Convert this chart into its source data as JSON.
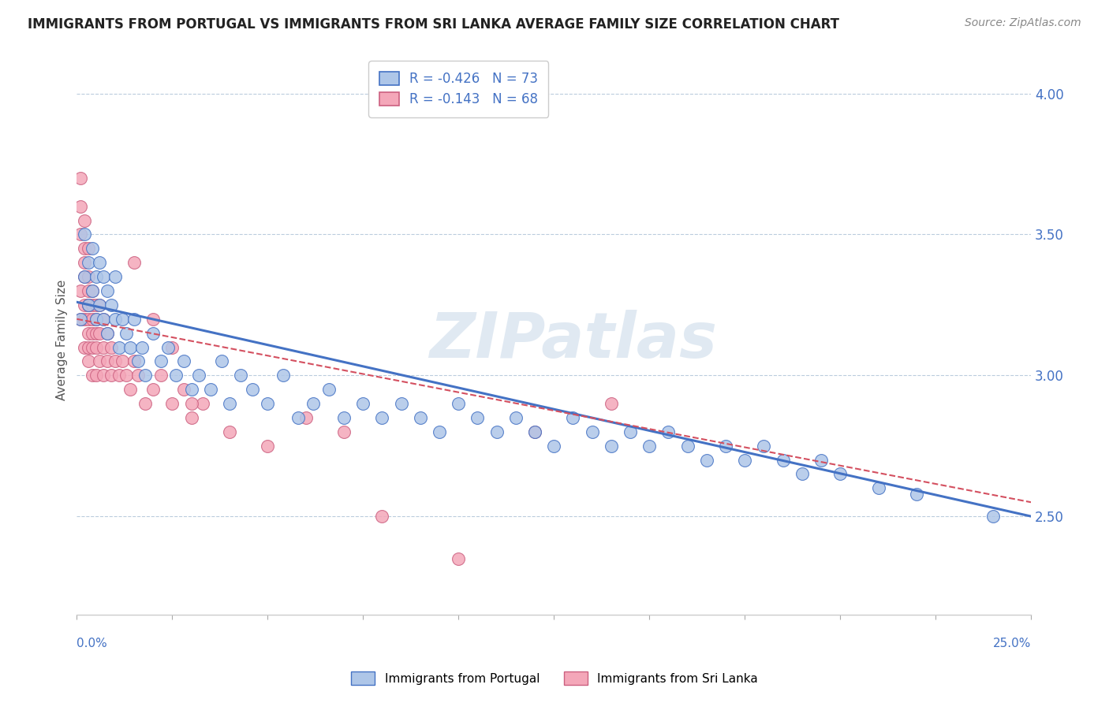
{
  "title": "IMMIGRANTS FROM PORTUGAL VS IMMIGRANTS FROM SRI LANKA AVERAGE FAMILY SIZE CORRELATION CHART",
  "source": "Source: ZipAtlas.com",
  "ylabel": "Average Family Size",
  "xmin": 0.0,
  "xmax": 0.25,
  "ymin": 2.15,
  "ymax": 4.1,
  "yticks": [
    2.5,
    3.0,
    3.5,
    4.0
  ],
  "portugal_R": -0.426,
  "portugal_N": 73,
  "srilanka_R": -0.143,
  "srilanka_N": 68,
  "portugal_color": "#aec6e8",
  "srilanka_color": "#f4a7b9",
  "trendline_portugal_color": "#4472c4",
  "trendline_srilanka_color": "#d45060",
  "background_color": "#ffffff",
  "portugal_scatter_x": [
    0.001,
    0.002,
    0.002,
    0.003,
    0.003,
    0.004,
    0.004,
    0.005,
    0.005,
    0.006,
    0.006,
    0.007,
    0.007,
    0.008,
    0.008,
    0.009,
    0.01,
    0.01,
    0.011,
    0.012,
    0.013,
    0.014,
    0.015,
    0.016,
    0.017,
    0.018,
    0.02,
    0.022,
    0.024,
    0.026,
    0.028,
    0.03,
    0.032,
    0.035,
    0.038,
    0.04,
    0.043,
    0.046,
    0.05,
    0.054,
    0.058,
    0.062,
    0.066,
    0.07,
    0.075,
    0.08,
    0.085,
    0.09,
    0.095,
    0.1,
    0.105,
    0.11,
    0.115,
    0.12,
    0.125,
    0.13,
    0.135,
    0.14,
    0.145,
    0.15,
    0.155,
    0.16,
    0.165,
    0.17,
    0.175,
    0.18,
    0.185,
    0.19,
    0.195,
    0.2,
    0.21,
    0.22,
    0.24
  ],
  "portugal_scatter_y": [
    3.2,
    3.35,
    3.5,
    3.25,
    3.4,
    3.3,
    3.45,
    3.2,
    3.35,
    3.25,
    3.4,
    3.2,
    3.35,
    3.15,
    3.3,
    3.25,
    3.2,
    3.35,
    3.1,
    3.2,
    3.15,
    3.1,
    3.2,
    3.05,
    3.1,
    3.0,
    3.15,
    3.05,
    3.1,
    3.0,
    3.05,
    2.95,
    3.0,
    2.95,
    3.05,
    2.9,
    3.0,
    2.95,
    2.9,
    3.0,
    2.85,
    2.9,
    2.95,
    2.85,
    2.9,
    2.85,
    2.9,
    2.85,
    2.8,
    2.9,
    2.85,
    2.8,
    2.85,
    2.8,
    2.75,
    2.85,
    2.8,
    2.75,
    2.8,
    2.75,
    2.8,
    2.75,
    2.7,
    2.75,
    2.7,
    2.75,
    2.7,
    2.65,
    2.7,
    2.65,
    2.6,
    2.58,
    2.5
  ],
  "srilanka_scatter_x": [
    0.001,
    0.001,
    0.001,
    0.001,
    0.001,
    0.002,
    0.002,
    0.002,
    0.002,
    0.002,
    0.002,
    0.002,
    0.003,
    0.003,
    0.003,
    0.003,
    0.003,
    0.003,
    0.003,
    0.003,
    0.003,
    0.004,
    0.004,
    0.004,
    0.004,
    0.004,
    0.004,
    0.005,
    0.005,
    0.005,
    0.005,
    0.005,
    0.006,
    0.006,
    0.006,
    0.007,
    0.007,
    0.007,
    0.008,
    0.008,
    0.009,
    0.009,
    0.01,
    0.011,
    0.012,
    0.013,
    0.014,
    0.015,
    0.016,
    0.018,
    0.02,
    0.022,
    0.025,
    0.028,
    0.03,
    0.033,
    0.04,
    0.05,
    0.06,
    0.07,
    0.08,
    0.1,
    0.12,
    0.14,
    0.015,
    0.02,
    0.025,
    0.03
  ],
  "srilanka_scatter_y": [
    3.2,
    3.3,
    3.5,
    3.6,
    3.7,
    3.25,
    3.4,
    3.55,
    3.1,
    3.2,
    3.35,
    3.45,
    3.15,
    3.25,
    3.35,
    3.45,
    3.1,
    3.2,
    3.3,
    3.05,
    3.25,
    3.1,
    3.2,
    3.3,
    3.0,
    3.15,
    3.25,
    3.1,
    3.2,
    3.0,
    3.15,
    3.25,
    3.05,
    3.15,
    3.25,
    3.1,
    3.0,
    3.2,
    3.05,
    3.15,
    3.0,
    3.1,
    3.05,
    3.0,
    3.05,
    3.0,
    2.95,
    3.05,
    3.0,
    2.9,
    2.95,
    3.0,
    2.9,
    2.95,
    2.85,
    2.9,
    2.8,
    2.75,
    2.85,
    2.8,
    2.5,
    2.35,
    2.8,
    2.9,
    3.4,
    3.2,
    3.1,
    2.9
  ]
}
